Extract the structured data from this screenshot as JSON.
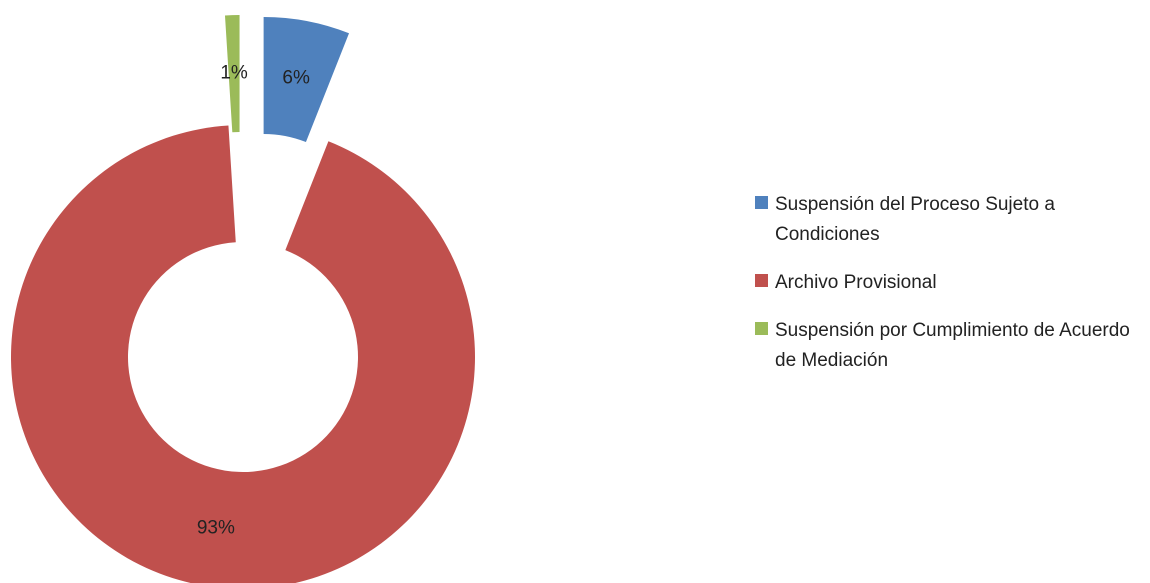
{
  "chart_data": {
    "type": "doughnut",
    "categories": [
      "Suspensión del Proceso Sujeto a Condiciones",
      "Archivo Provisional",
      "Suspensión por Cumplimiento de Acuerdo de Mediación"
    ],
    "values": [
      6,
      93,
      1
    ],
    "value_labels": [
      "6%",
      "93%",
      "1%"
    ],
    "colors": [
      "#4f81bd",
      "#c0504d",
      "#9bbb59"
    ],
    "legend": "right"
  }
}
